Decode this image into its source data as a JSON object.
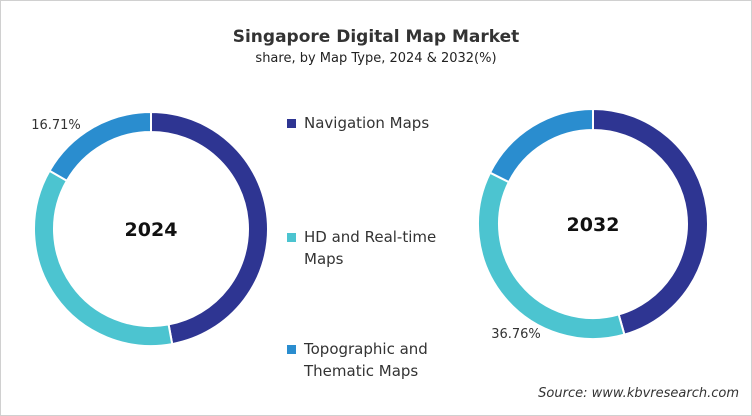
{
  "chart_data": {
    "type": "pie",
    "title": "Singapore Digital Map Market",
    "subtitle": "share, by Map Type, 2024 & 2032(%)",
    "categories": [
      "Navigation Maps",
      "HD and Real-time Maps",
      "Topographic and Thematic Maps"
    ],
    "colors": [
      "#2e3592",
      "#4cc4d0",
      "#2a8dcf"
    ],
    "legend_placement": "center",
    "series": [
      {
        "name": "2024",
        "values": [
          47.1,
          36.19,
          16.71
        ],
        "labels": [
          "",
          "",
          "16.71%"
        ]
      },
      {
        "name": "2032",
        "values": [
          45.6,
          36.76,
          17.64
        ],
        "labels": [
          "",
          "36.76%",
          ""
        ]
      }
    ],
    "source": "Source: www.kbvresearch.com"
  }
}
